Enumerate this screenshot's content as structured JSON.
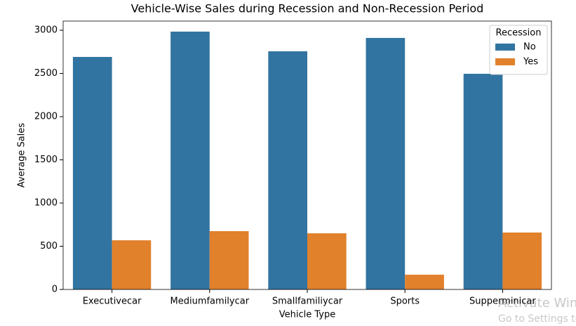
{
  "chart_data": {
    "type": "bar",
    "title": "Vehicle-Wise Sales during Recession and Non-Recession Period",
    "x_label": "Vehicle Type",
    "y_label": "Average Sales",
    "categories": [
      "Executivecar",
      "Mediumfamilycar",
      "Smallfamiliycar",
      "Sports",
      "Supperminicar"
    ],
    "series": [
      {
        "name": "No",
        "color": "#3274a1",
        "values": [
          2691,
          2984,
          2756,
          2911,
          2496
        ]
      },
      {
        "name": "Yes",
        "color": "#e1812c",
        "values": [
          569,
          675,
          650,
          171,
          659
        ]
      }
    ],
    "legend_title": "Recession",
    "legend_position": "upper right",
    "ylim": [
      0,
      3106
    ],
    "yticks": [
      0,
      500,
      1000,
      1500,
      2000,
      2500,
      3000
    ],
    "grid": false
  },
  "watermark": {
    "title": "Activate Win",
    "subtitle": "Go to Settings to"
  }
}
